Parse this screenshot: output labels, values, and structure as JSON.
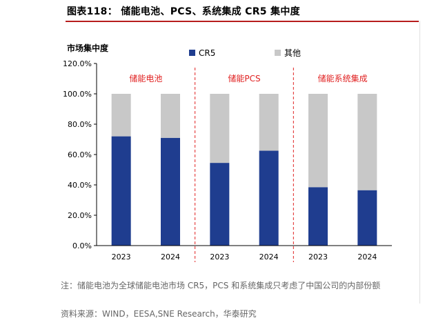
{
  "figure": {
    "title": "图表118： 储能电池、PCS、系统集成 CR5 集中度",
    "footnote": "注：储能电池为全球储能电池市场 CR5，PCS 和系统集成只考虑了中国公司的内部份额",
    "source": "资料来源：WIND，EESA,SNE Research，华泰研究"
  },
  "colors": {
    "cr5": "#1f3d8f",
    "other": "#c8c8c8",
    "accent_red": "#e02020",
    "title_rule": "#b71c1c"
  },
  "chart_data": {
    "type": "bar",
    "stacked": true,
    "ylabel": "市场集中度",
    "ylim": [
      0,
      120
    ],
    "yticks": [
      "0.0%",
      "20.0%",
      "40.0%",
      "60.0%",
      "80.0%",
      "100.0%",
      "120.0%"
    ],
    "grid": false,
    "legend_position": "top",
    "groups": [
      {
        "label": "储能电池",
        "categories": [
          "2023",
          "2024"
        ]
      },
      {
        "label": "储能PCS",
        "categories": [
          "2023",
          "2024"
        ]
      },
      {
        "label": "储能系统集成",
        "categories": [
          "2023",
          "2024"
        ]
      }
    ],
    "categories": [
      "2023",
      "2024",
      "2023",
      "2024",
      "2023",
      "2024"
    ],
    "series": [
      {
        "name": "CR5",
        "values": [
          72,
          71,
          54.5,
          62.5,
          38.5,
          36.5
        ]
      },
      {
        "name": "其他",
        "values": [
          28,
          29,
          45.5,
          37.5,
          61.5,
          63.5
        ]
      }
    ]
  }
}
